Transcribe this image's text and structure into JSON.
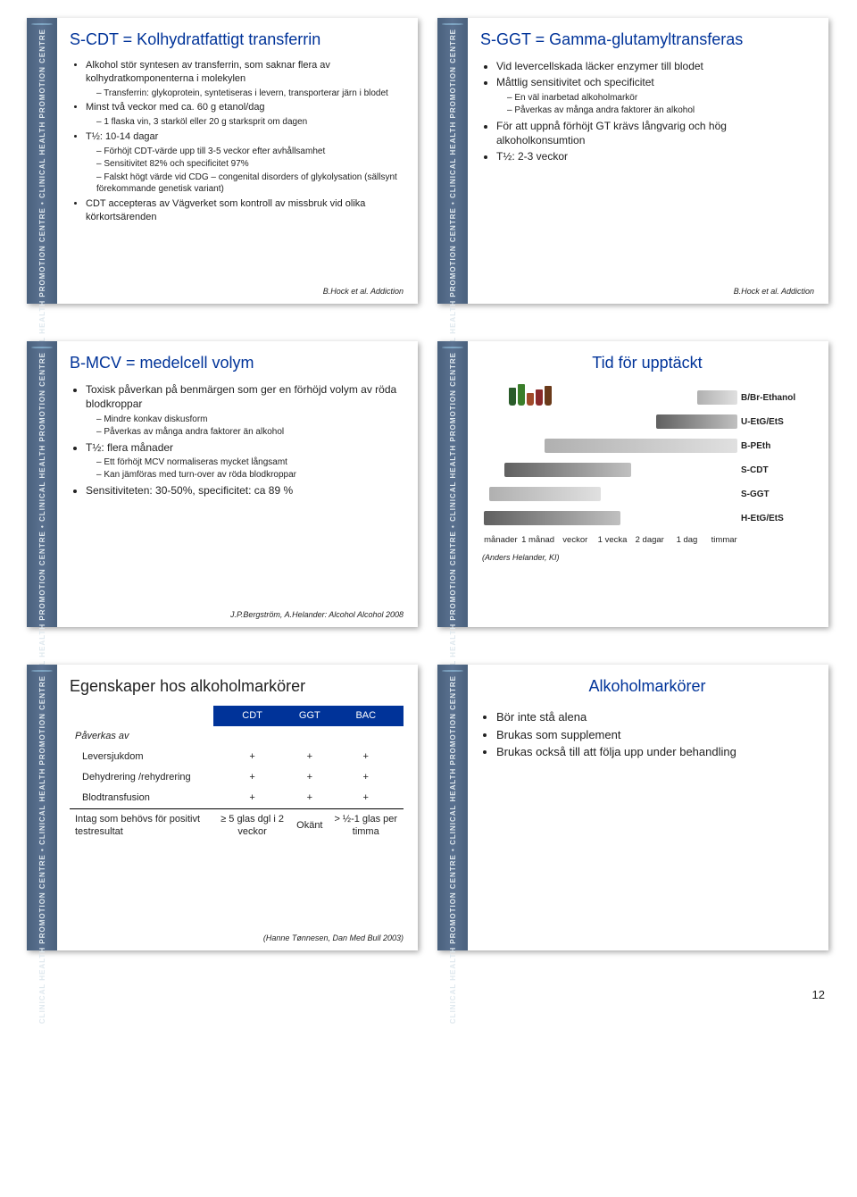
{
  "sidebar_text": "CLINICAL HEALTH PROMOTION CENTRE • CLINICAL HEALTH PROMOTION CENTRE",
  "page_number": "12",
  "slides": {
    "s1": {
      "title": "S-CDT = Kolhydratfattigt transferrin",
      "bullets": [
        {
          "t": "Alkohol stör syntesen av transferrin, som saknar flera av kolhydratkomponenterna i molekylen",
          "sub": [
            "Transferrin: glykoprotein, syntetiseras i levern, transporterar järn i blodet"
          ]
        },
        {
          "t": "Minst två veckor med ca. 60 g etanol/dag",
          "sub": [
            "1 flaska vin, 3 starköl eller 20 g starksprit om dagen"
          ]
        },
        {
          "t": "T½: 10-14 dagar",
          "sub": [
            "Förhöjt CDT-värde upp till 3-5 veckor efter avhållsamhet",
            "Sensitivitet 82% och specificitet 97%",
            "Falskt högt värde vid CDG – congenital disorders of glykolysation (sällsynt förekommande genetisk variant)"
          ]
        },
        {
          "t": "CDT accepteras av Vägverket som kontroll av missbruk vid olika körkortsärenden"
        }
      ],
      "cite": "B.Hock et al. Addiction"
    },
    "s2": {
      "title": "S-GGT = Gamma-glutamyltransferas",
      "bullets": [
        {
          "t": "Vid levercellskada läcker enzymer till blodet"
        },
        {
          "t": "Måttlig sensitivitet och specificitet",
          "sub": [
            "En väl inarbetad alkoholmarkör",
            "Påverkas av många andra faktorer än alkohol"
          ]
        },
        {
          "t": "För att uppnå förhöjt GT krävs långvarig och hög alkoholkonsumtion"
        },
        {
          "t": "T½: 2-3 veckor"
        }
      ],
      "cite": "B.Hock et al. Addiction"
    },
    "s3": {
      "title": "B-MCV = medelcell volym",
      "bullets": [
        {
          "t": "Toxisk påverkan på benmärgen som ger en förhöjd volym av röda blodkroppar",
          "sub": [
            "Mindre konkav diskusform",
            "Påverkas av många andra faktorer än alkohol"
          ]
        },
        {
          "t": "T½: flera månader",
          "sub": [
            "Ett förhöjt MCV normaliseras mycket långsamt",
            "Kan jämföras med turn-over av röda blodkroppar"
          ]
        },
        {
          "t": "Sensitiviteten: 30-50%, specificitet: ca 89 %"
        }
      ],
      "cite": "J.P.Bergström, A.Helander: Alcohol Alcohol 2008"
    },
    "s4": {
      "title": "Tid för upptäckt",
      "markers": [
        {
          "label": "B/Br-Ethanol",
          "start": 84,
          "end": 100,
          "cls": "bar-a"
        },
        {
          "label": "U-EtG/EtS",
          "start": 68,
          "end": 100,
          "cls": "bar-b"
        },
        {
          "label": "B-PEth",
          "start": 24,
          "end": 100,
          "cls": "bar-a"
        },
        {
          "label": "S-CDT",
          "start": 8,
          "end": 58,
          "cls": "bar-b"
        },
        {
          "label": "S-GGT",
          "start": 2,
          "end": 46,
          "cls": "bar-a"
        },
        {
          "label": "H-EtG/EtS",
          "start": 0,
          "end": 54,
          "cls": "bar-b"
        }
      ],
      "axis": [
        "månader",
        "1 månad",
        "veckor",
        "1 vecka",
        "2 dagar",
        "1 dag",
        "timmar"
      ],
      "cite": "(Anders Helander, KI)"
    },
    "s5": {
      "title": "Egenskaper hos alkoholmarkörer",
      "table": {
        "headers": [
          "",
          "CDT",
          "GGT",
          "BAC"
        ],
        "section1_label": "Påverkas av",
        "rows1": [
          [
            "Leversjukdom",
            "+",
            "+",
            "+"
          ],
          [
            "Dehydrering /rehydrering",
            "+",
            "+",
            "+"
          ],
          [
            "Blodtransfusion",
            "+",
            "+",
            "+"
          ]
        ],
        "row2": [
          "Intag som behövs för positivt testresultat",
          "≥ 5 glas dgl i 2 veckor",
          "Okänt",
          "> ½-1 glas per timma"
        ]
      },
      "cite": "(Hanne Tønnesen, Dan Med Bull 2003)"
    },
    "s6": {
      "title": "Alkoholmarkörer",
      "bullets": [
        {
          "t": "Bör inte stå alena"
        },
        {
          "t": "Brukas som supplement"
        },
        {
          "t": "Brukas också till att följa upp under behandling"
        }
      ]
    }
  }
}
